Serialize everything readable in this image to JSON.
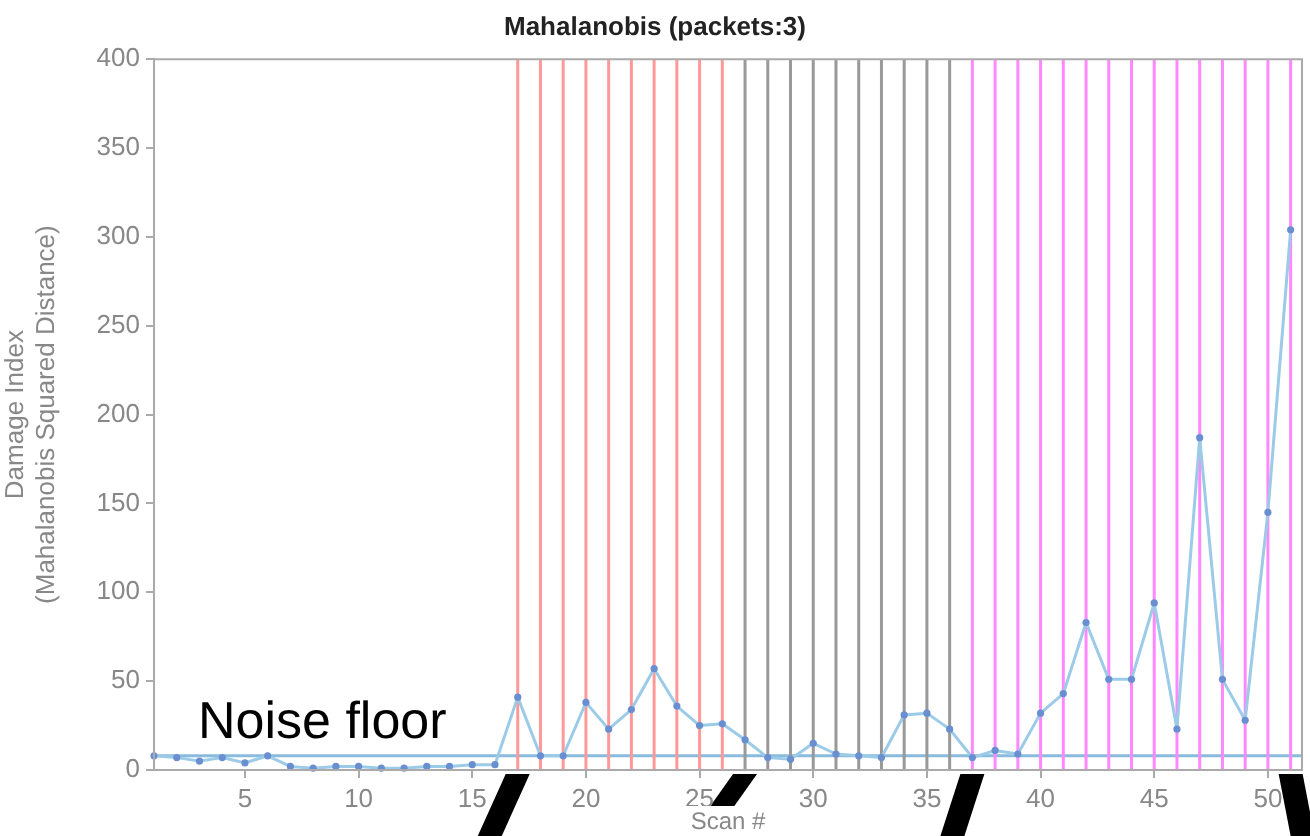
{
  "chart_data": {
    "type": "line",
    "title": "Mahalanobis (packets:3)",
    "xlabel": "Scan #",
    "ylabel": "Damage Index\n(Mahalanobis Squared Distance)",
    "x": [
      1,
      2,
      3,
      4,
      5,
      6,
      7,
      8,
      9,
      10,
      11,
      12,
      13,
      14,
      15,
      16,
      17,
      18,
      19,
      20,
      21,
      22,
      23,
      24,
      25,
      26,
      27,
      28,
      29,
      30,
      31,
      32,
      33,
      34,
      35,
      36,
      37,
      38,
      39,
      40,
      41,
      42,
      43,
      44,
      45,
      46,
      47,
      48,
      49,
      50,
      51
    ],
    "series": [
      {
        "color": "#9ccbe8",
        "values": [
          8,
          7,
          5,
          7,
          4,
          8,
          2,
          1,
          2,
          2,
          1,
          1,
          2,
          2,
          3,
          3,
          41,
          8,
          8,
          38,
          23,
          34,
          57,
          36,
          25,
          26,
          17,
          7,
          6,
          15,
          9,
          8,
          7,
          31,
          32,
          23,
          7,
          11,
          9,
          32,
          43,
          83,
          51,
          51,
          94,
          23,
          187,
          51,
          28,
          145,
          304
        ]
      }
    ],
    "xlim": [
      1,
      51.5
    ],
    "xticks": [
      5,
      10,
      15,
      20,
      25,
      30,
      35,
      40,
      45,
      50
    ],
    "ylim": [
      0,
      400
    ],
    "yticks": [
      0,
      50,
      100,
      150,
      200,
      250,
      300,
      350,
      400
    ],
    "marker": "circle",
    "grid": false,
    "legend": false,
    "ref_lines": [
      {
        "axis": "y",
        "value": 8,
        "label": "Noise floor",
        "color": "#88bbdd"
      },
      {
        "axis": "x",
        "value": 17,
        "color": "#ff9999"
      },
      {
        "axis": "x",
        "value": 18,
        "color": "#ff9999"
      },
      {
        "axis": "x",
        "value": 19,
        "color": "#ff9999"
      },
      {
        "axis": "x",
        "value": 20,
        "color": "#ff9999"
      },
      {
        "axis": "x",
        "value": 21,
        "color": "#ff9999"
      },
      {
        "axis": "x",
        "value": 22,
        "color": "#ff9999"
      },
      {
        "axis": "x",
        "value": 23,
        "color": "#ff9999"
      },
      {
        "axis": "x",
        "value": 24,
        "color": "#ff9999"
      },
      {
        "axis": "x",
        "value": 25,
        "color": "#ff9999"
      },
      {
        "axis": "x",
        "value": 26,
        "color": "#ff9999"
      },
      {
        "axis": "x",
        "value": 27,
        "color": "#999999"
      },
      {
        "axis": "x",
        "value": 28,
        "color": "#999999"
      },
      {
        "axis": "x",
        "value": 29,
        "color": "#999999"
      },
      {
        "axis": "x",
        "value": 30,
        "color": "#999999"
      },
      {
        "axis": "x",
        "value": 31,
        "color": "#999999"
      },
      {
        "axis": "x",
        "value": 32,
        "color": "#999999"
      },
      {
        "axis": "x",
        "value": 33,
        "color": "#999999"
      },
      {
        "axis": "x",
        "value": 34,
        "color": "#999999"
      },
      {
        "axis": "x",
        "value": 35,
        "color": "#999999"
      },
      {
        "axis": "x",
        "value": 36,
        "color": "#999999"
      },
      {
        "axis": "x",
        "value": 37,
        "color": "#ff88ff"
      },
      {
        "axis": "x",
        "value": 38,
        "color": "#ff88ff"
      },
      {
        "axis": "x",
        "value": 39,
        "color": "#ff88ff"
      },
      {
        "axis": "x",
        "value": 40,
        "color": "#ff88ff"
      },
      {
        "axis": "x",
        "value": 41,
        "color": "#ff88ff"
      },
      {
        "axis": "x",
        "value": 42,
        "color": "#ff88ff"
      },
      {
        "axis": "x",
        "value": 43,
        "color": "#ff88ff"
      },
      {
        "axis": "x",
        "value": 44,
        "color": "#ff88ff"
      },
      {
        "axis": "x",
        "value": 45,
        "color": "#ff88ff"
      },
      {
        "axis": "x",
        "value": 46,
        "color": "#ff88ff"
      },
      {
        "axis": "x",
        "value": 47,
        "color": "#ff88ff"
      },
      {
        "axis": "x",
        "value": 48,
        "color": "#ff88ff"
      },
      {
        "axis": "x",
        "value": 49,
        "color": "#ff88ff"
      },
      {
        "axis": "x",
        "value": 50,
        "color": "#ff88ff"
      },
      {
        "axis": "x",
        "value": 51,
        "color": "#ff88ff"
      }
    ]
  }
}
